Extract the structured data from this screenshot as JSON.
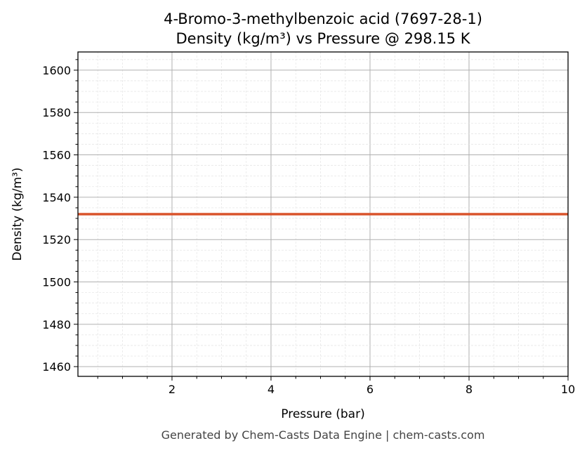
{
  "chart_data": {
    "type": "line",
    "title": "4-Bromo-3-methylbenzoic acid (7697-28-1)",
    "subtitle": "Density (kg/m³) vs Pressure @ 298.15 K",
    "xlabel": "Pressure (bar)",
    "ylabel": "Density (kg/m³)",
    "xlim": [
      0.1,
      10
    ],
    "ylim": [
      1455.4,
      1608.6
    ],
    "xticks": [
      2,
      4,
      6,
      8,
      10
    ],
    "yticks": [
      1460,
      1480,
      1500,
      1520,
      1540,
      1560,
      1580,
      1600
    ],
    "grid": true,
    "series": [
      {
        "x": [
          0.1,
          10
        ],
        "y": [
          1532,
          1532
        ],
        "color": "#d9532b"
      }
    ],
    "footer": "Generated by Chem-Casts Data Engine | chem-casts.com"
  }
}
